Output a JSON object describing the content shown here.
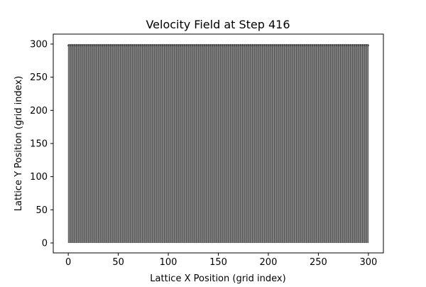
{
  "chart_data": {
    "type": "quiver",
    "title": "Velocity Field at Step 416",
    "xlabel": "Lattice X Position (grid index)",
    "ylabel": "Lattice Y Position (grid index)",
    "xlim": [
      -15,
      315
    ],
    "ylim": [
      -15,
      315
    ],
    "x_ticks": [
      0,
      50,
      100,
      150,
      200,
      250,
      300
    ],
    "y_ticks": [
      0,
      50,
      100,
      150,
      200,
      250,
      300
    ],
    "x_tick_labels": [
      "0",
      "50",
      "100",
      "150",
      "200",
      "250",
      "300"
    ],
    "y_tick_labels": [
      "0",
      "50",
      "100",
      "150",
      "200",
      "250",
      "300"
    ],
    "grid": false,
    "legend": "none",
    "field": {
      "x_start": 0,
      "x_end": 300,
      "y_start": 0,
      "y_end": 300,
      "spacing": 2,
      "arrow_direction": "vertical",
      "color": "#7f7f7f"
    },
    "colors": {
      "arrow_fill": "#7f7f7f",
      "arrow_dark": "#3a3a3a",
      "axes": "#000000",
      "background": "#ffffff"
    }
  }
}
